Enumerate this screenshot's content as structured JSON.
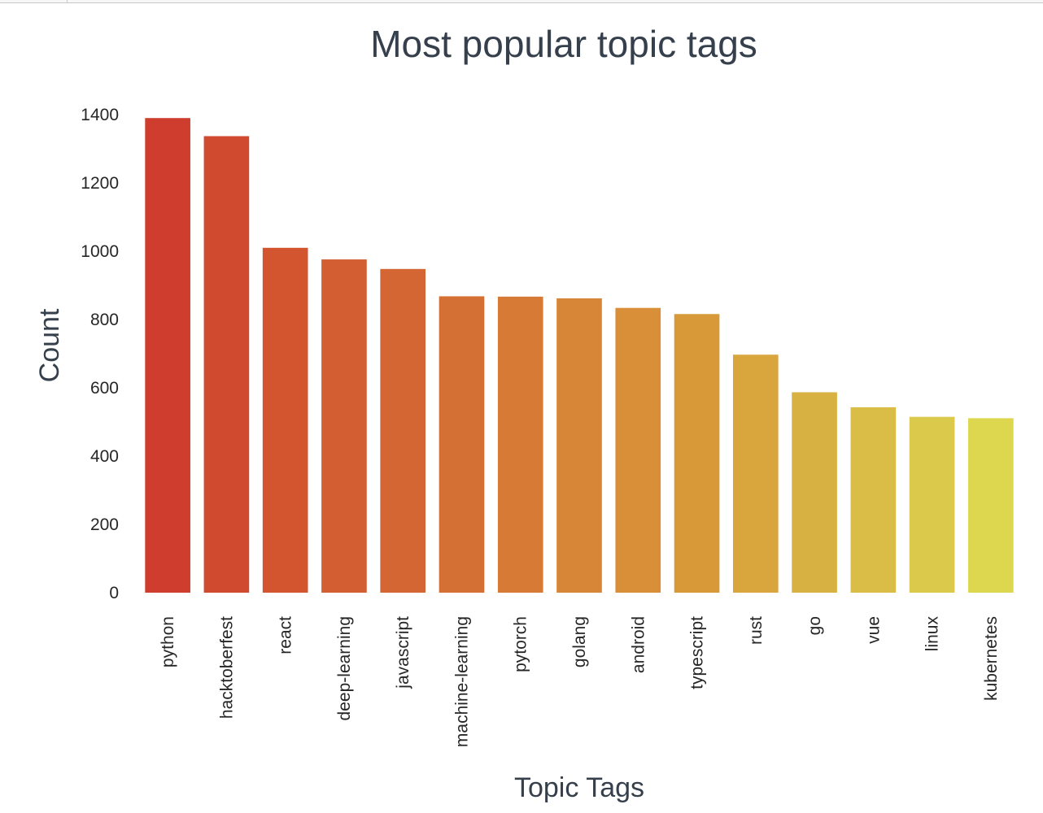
{
  "chart_data": {
    "type": "bar",
    "title": "Most popular topic tags",
    "xlabel": "Topic Tags",
    "ylabel": "Count",
    "categories": [
      "python",
      "hacktoberfest",
      "react",
      "deep-learning",
      "javascript",
      "machine-learning",
      "pytorch",
      "golang",
      "android",
      "typescript",
      "rust",
      "go",
      "vue",
      "linux",
      "kubernetes"
    ],
    "values": [
      1390,
      1337,
      1010,
      976,
      948,
      868,
      867,
      862,
      834,
      816,
      697,
      587,
      543,
      515,
      511
    ],
    "ylim": [
      0,
      1400
    ],
    "yticks": [
      "0",
      "200",
      "400",
      "600",
      "800",
      "1000",
      "1200",
      "1400"
    ],
    "grid": false,
    "palette": "YlOrRd (reversed)",
    "colors": [
      "#cf3d2e",
      "#cf4a2e",
      "#d25530",
      "#d25e31",
      "#d36633",
      "#d57034",
      "#d67a35",
      "#d78536",
      "#d88f37",
      "#d89a39",
      "#d8a63d",
      "#d8b143",
      "#d9bd47",
      "#dac94b",
      "#ddd64f"
    ]
  }
}
